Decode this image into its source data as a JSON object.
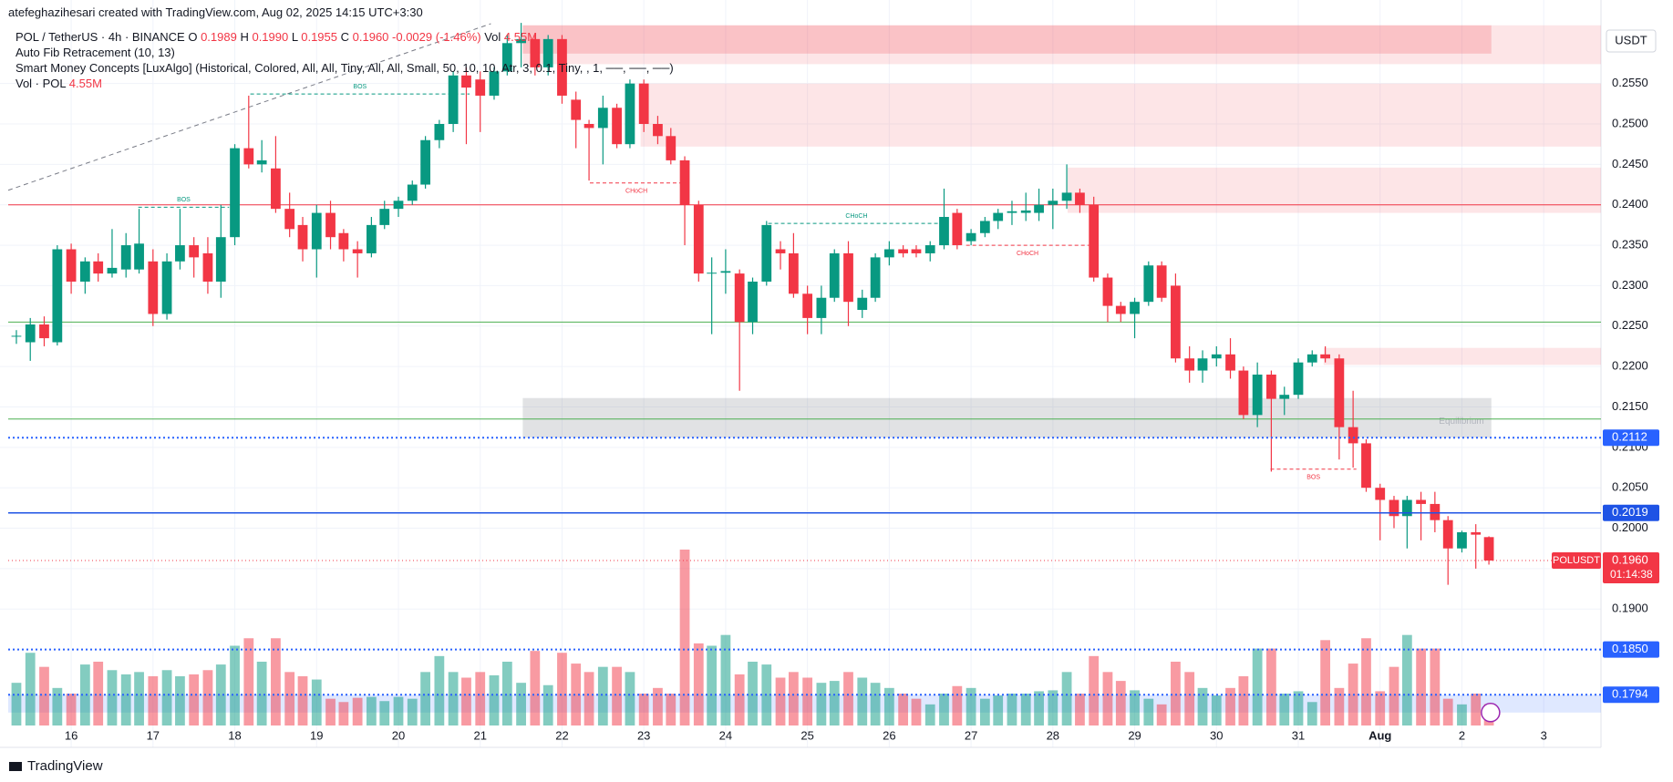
{
  "header": {
    "credit": "atefeghazihesari created with TradingView.com, Aug 02, 2025 14:15 UTC+3:30",
    "symbol": "POL / TetherUS · 4h · BINANCE",
    "ohlc": [
      {
        "label": "O",
        "value": "0.1989"
      },
      {
        "label": "H",
        "value": "0.1990"
      },
      {
        "label": "L",
        "value": "0.1955"
      },
      {
        "label": "C",
        "value": "0.1960"
      }
    ],
    "change": "-0.0029 (-1.46%)",
    "vol_label": "Vol",
    "vol_value": "4.55M",
    "indicators": [
      "Auto Fib Retracement (10, 13)",
      "Smart Money Concepts [LuxAlgo] (Historical, Colored, All, All, Tiny, All, All, Small, 50, 10, 10, Atr, 3, 0.1, Tiny, , 1, ──, ──, ──)"
    ],
    "volume_indicator": {
      "name": "Vol · POL",
      "value": "4.55M"
    },
    "currency": "USDT",
    "brand": "TradingView"
  },
  "chart_data": {
    "type": "candlestick",
    "up_color": "#089981",
    "down_color": "#f23645",
    "grid": true,
    "xlim": [
      15.23,
      34.7
    ],
    "xticks": [
      16,
      17,
      18,
      19,
      20,
      21,
      22,
      23,
      24,
      25,
      26,
      27,
      28,
      29,
      30,
      31,
      {
        "value": 32,
        "label": "Aug"
      },
      {
        "value": 33,
        "label": "2"
      },
      {
        "value": 34,
        "label": "3"
      }
    ],
    "ylim": [
      0.1756,
      0.2624
    ],
    "yticks": [
      {
        "value": 0.19,
        "label": "0.1900"
      },
      {
        "value": 0.195,
        "label": "0.1950"
      },
      {
        "value": 0.2,
        "label": "0.2000"
      },
      {
        "value": 0.205,
        "label": "0.2050"
      },
      {
        "value": 0.21,
        "label": "0.2100"
      },
      {
        "value": 0.215,
        "label": "0.2150"
      },
      {
        "value": 0.22,
        "label": "0.2200"
      },
      {
        "value": 0.225,
        "label": "0.2250"
      },
      {
        "value": 0.23,
        "label": "0.2300"
      },
      {
        "value": 0.235,
        "label": "0.2350"
      },
      {
        "value": 0.24,
        "label": "0.2400"
      },
      {
        "value": 0.245,
        "label": "0.2450"
      },
      {
        "value": 0.25,
        "label": "0.2500"
      },
      {
        "value": 0.255,
        "label": "0.2550"
      }
    ],
    "candles": [
      [
        15.33,
        0.2237,
        0.2245,
        0.2228,
        0.2238,
        9.1
      ],
      [
        15.5,
        0.223,
        0.226,
        0.2207,
        0.2252,
        15.5
      ],
      [
        15.67,
        0.2252,
        0.2262,
        0.2225,
        0.2235,
        12.5
      ],
      [
        15.83,
        0.223,
        0.235,
        0.2226,
        0.2345,
        8.0
      ],
      [
        16,
        0.2345,
        0.2352,
        0.229,
        0.2305,
        6.8
      ],
      [
        16.17,
        0.2305,
        0.2335,
        0.229,
        0.233,
        13.0
      ],
      [
        16.33,
        0.233,
        0.234,
        0.2305,
        0.2315,
        13.6
      ],
      [
        16.5,
        0.2315,
        0.237,
        0.231,
        0.2322,
        11.8
      ],
      [
        16.67,
        0.232,
        0.2365,
        0.231,
        0.235,
        10.9
      ],
      [
        16.83,
        0.232,
        0.2395,
        0.2315,
        0.2352,
        11.4
      ],
      [
        17,
        0.233,
        0.2345,
        0.225,
        0.2265,
        10.5
      ],
      [
        17.17,
        0.2265,
        0.234,
        0.2258,
        0.233,
        11.8
      ],
      [
        17.33,
        0.233,
        0.2395,
        0.232,
        0.235,
        10.5
      ],
      [
        17.5,
        0.235,
        0.236,
        0.231,
        0.2335,
        10.9
      ],
      [
        17.67,
        0.234,
        0.236,
        0.229,
        0.2305,
        11.8
      ],
      [
        17.83,
        0.2305,
        0.24,
        0.2285,
        0.236,
        13.0
      ],
      [
        18,
        0.236,
        0.2475,
        0.235,
        0.247,
        17.0
      ],
      [
        18.17,
        0.247,
        0.2535,
        0.2445,
        0.245,
        18.6
      ],
      [
        18.33,
        0.245,
        0.248,
        0.244,
        0.2455,
        13.6
      ],
      [
        18.5,
        0.2445,
        0.2485,
        0.239,
        0.2395,
        18.6
      ],
      [
        18.67,
        0.2395,
        0.2415,
        0.236,
        0.237,
        11.4
      ],
      [
        18.83,
        0.2375,
        0.2385,
        0.233,
        0.2345,
        10.5
      ],
      [
        19,
        0.2345,
        0.24,
        0.231,
        0.239,
        9.8
      ],
      [
        19.17,
        0.239,
        0.2405,
        0.2345,
        0.236,
        5.7
      ],
      [
        19.33,
        0.2365,
        0.237,
        0.233,
        0.2345,
        5.0
      ],
      [
        19.5,
        0.2345,
        0.2355,
        0.231,
        0.234,
        5.9
      ],
      [
        19.67,
        0.234,
        0.2385,
        0.2335,
        0.2375,
        6.1
      ],
      [
        19.83,
        0.2375,
        0.2405,
        0.237,
        0.2395,
        5.2
      ],
      [
        20,
        0.2395,
        0.241,
        0.2385,
        0.2405,
        6.1
      ],
      [
        20.17,
        0.2405,
        0.243,
        0.24,
        0.2425,
        5.7
      ],
      [
        20.33,
        0.2425,
        0.2485,
        0.242,
        0.248,
        11.4
      ],
      [
        20.5,
        0.248,
        0.2505,
        0.247,
        0.25,
        14.8
      ],
      [
        20.67,
        0.25,
        0.2565,
        0.249,
        0.256,
        11.4
      ],
      [
        20.83,
        0.256,
        0.257,
        0.2475,
        0.2545,
        10.2
      ],
      [
        21,
        0.2555,
        0.2565,
        0.249,
        0.2535,
        11.4
      ],
      [
        21.17,
        0.2535,
        0.257,
        0.253,
        0.2565,
        10.7
      ],
      [
        21.33,
        0.2565,
        0.261,
        0.256,
        0.26,
        13.6
      ],
      [
        21.5,
        0.26,
        0.2625,
        0.257,
        0.2605,
        9.1
      ],
      [
        21.67,
        0.2605,
        0.261,
        0.256,
        0.257,
        15.9
      ],
      [
        21.83,
        0.257,
        0.261,
        0.256,
        0.2605,
        8.6
      ],
      [
        22,
        0.2605,
        0.261,
        0.2525,
        0.2535,
        15.5
      ],
      [
        22.17,
        0.253,
        0.254,
        0.247,
        0.2505,
        13.2
      ],
      [
        22.33,
        0.25,
        0.2505,
        0.243,
        0.2495,
        11.4
      ],
      [
        22.5,
        0.2495,
        0.2535,
        0.245,
        0.252,
        12.5
      ],
      [
        22.67,
        0.252,
        0.2525,
        0.247,
        0.2475,
        12.5
      ],
      [
        22.83,
        0.2475,
        0.2555,
        0.247,
        0.255,
        11.4
      ],
      [
        23,
        0.255,
        0.2555,
        0.249,
        0.25,
        6.8
      ],
      [
        23.17,
        0.25,
        0.251,
        0.2475,
        0.2485,
        8.0
      ],
      [
        23.33,
        0.2485,
        0.2495,
        0.245,
        0.2455,
        6.8
      ],
      [
        23.5,
        0.2455,
        0.246,
        0.235,
        0.24,
        37.5
      ],
      [
        23.67,
        0.24,
        0.2405,
        0.2305,
        0.2315,
        17.5
      ],
      [
        23.83,
        0.2315,
        0.2335,
        0.224,
        0.2316,
        17.0
      ],
      [
        24,
        0.2316,
        0.2345,
        0.229,
        0.2318,
        19.3
      ],
      [
        24.17,
        0.2315,
        0.232,
        0.217,
        0.2255,
        10.9
      ],
      [
        24.33,
        0.2255,
        0.231,
        0.224,
        0.2305,
        13.6
      ],
      [
        24.5,
        0.2305,
        0.238,
        0.23,
        0.2375,
        13.0
      ],
      [
        24.67,
        0.2345,
        0.2355,
        0.232,
        0.234,
        10.2
      ],
      [
        24.83,
        0.234,
        0.2365,
        0.2285,
        0.229,
        11.4
      ],
      [
        25,
        0.229,
        0.23,
        0.224,
        0.226,
        10.2
      ],
      [
        25.17,
        0.226,
        0.23,
        0.224,
        0.2285,
        9.1
      ],
      [
        25.33,
        0.2285,
        0.2345,
        0.228,
        0.234,
        9.5
      ],
      [
        25.5,
        0.234,
        0.2355,
        0.225,
        0.228,
        11.4
      ],
      [
        25.67,
        0.227,
        0.2295,
        0.226,
        0.2285,
        10.2
      ],
      [
        25.83,
        0.2285,
        0.234,
        0.228,
        0.2335,
        9.1
      ],
      [
        26,
        0.2335,
        0.2355,
        0.2325,
        0.2345,
        8.0
      ],
      [
        26.17,
        0.2345,
        0.235,
        0.2335,
        0.234,
        6.8
      ],
      [
        26.33,
        0.2345,
        0.235,
        0.2335,
        0.234,
        5.7
      ],
      [
        26.5,
        0.234,
        0.2355,
        0.233,
        0.235,
        4.5
      ],
      [
        26.67,
        0.235,
        0.242,
        0.2345,
        0.2385,
        6.8
      ],
      [
        26.83,
        0.239,
        0.2395,
        0.2345,
        0.235,
        8.4
      ],
      [
        27,
        0.2355,
        0.237,
        0.235,
        0.2365,
        8.0
      ],
      [
        27.17,
        0.2365,
        0.2385,
        0.236,
        0.238,
        5.7
      ],
      [
        27.33,
        0.238,
        0.2395,
        0.237,
        0.239,
        6.4
      ],
      [
        27.5,
        0.239,
        0.2405,
        0.2375,
        0.2392,
        6.8
      ],
      [
        27.67,
        0.239,
        0.2415,
        0.238,
        0.2393,
        6.8
      ],
      [
        27.83,
        0.239,
        0.242,
        0.238,
        0.24,
        7.3
      ],
      [
        28,
        0.24,
        0.242,
        0.237,
        0.2405,
        7.5
      ],
      [
        28.17,
        0.2405,
        0.245,
        0.2395,
        0.2415,
        11.4
      ],
      [
        28.33,
        0.2415,
        0.242,
        0.239,
        0.24,
        6.8
      ],
      [
        28.5,
        0.24,
        0.241,
        0.2305,
        0.231,
        14.8
      ],
      [
        28.67,
        0.231,
        0.2315,
        0.2255,
        0.2275,
        11.4
      ],
      [
        28.83,
        0.2275,
        0.228,
        0.2255,
        0.2265,
        9.5
      ],
      [
        29,
        0.2265,
        0.2285,
        0.2235,
        0.228,
        7.5
      ],
      [
        29.17,
        0.228,
        0.233,
        0.2275,
        0.2325,
        5.7
      ],
      [
        29.33,
        0.2325,
        0.233,
        0.228,
        0.2285,
        4.5
      ],
      [
        29.5,
        0.23,
        0.2315,
        0.2205,
        0.221,
        13.6
      ],
      [
        29.67,
        0.221,
        0.2225,
        0.218,
        0.2195,
        11.4
      ],
      [
        29.83,
        0.2195,
        0.222,
        0.218,
        0.221,
        8.0
      ],
      [
        30,
        0.221,
        0.2225,
        0.22,
        0.2215,
        6.4
      ],
      [
        30.17,
        0.2215,
        0.2235,
        0.2185,
        0.2195,
        8.0
      ],
      [
        30.33,
        0.2195,
        0.22,
        0.2135,
        0.214,
        10.5
      ],
      [
        30.5,
        0.214,
        0.2205,
        0.2125,
        0.219,
        16.4
      ],
      [
        30.67,
        0.219,
        0.2195,
        0.207,
        0.216,
        16.4
      ],
      [
        30.83,
        0.216,
        0.2175,
        0.214,
        0.2165,
        6.8
      ],
      [
        31,
        0.2165,
        0.221,
        0.216,
        0.2205,
        7.3
      ],
      [
        31.17,
        0.2205,
        0.222,
        0.22,
        0.2215,
        5.0
      ],
      [
        31.33,
        0.2215,
        0.2225,
        0.2205,
        0.221,
        18.2
      ],
      [
        31.5,
        0.221,
        0.2215,
        0.2085,
        0.2125,
        8.0
      ],
      [
        31.67,
        0.2125,
        0.217,
        0.2075,
        0.2105,
        13.2
      ],
      [
        31.83,
        0.2105,
        0.211,
        0.2045,
        0.205,
        18.6
      ],
      [
        32,
        0.205,
        0.2055,
        0.1985,
        0.2035,
        7.3
      ],
      [
        32.17,
        0.2035,
        0.204,
        0.2,
        0.2015,
        12.5
      ],
      [
        32.33,
        0.2015,
        0.204,
        0.1975,
        0.2035,
        19.3
      ],
      [
        32.5,
        0.2035,
        0.2045,
        0.1985,
        0.203,
        16.4
      ],
      [
        32.67,
        0.203,
        0.2045,
        0.1995,
        0.201,
        16.4
      ],
      [
        32.83,
        0.201,
        0.2015,
        0.193,
        0.1975,
        5.7
      ],
      [
        33,
        0.1975,
        0.1997,
        0.197,
        0.1995,
        4.5
      ],
      [
        33.17,
        0.1995,
        0.2005,
        0.195,
        0.1992,
        6.8
      ],
      [
        33.33,
        0.1989,
        0.199,
        0.1955,
        0.196,
        4.55
      ]
    ],
    "zones": [
      {
        "top": 0.2622,
        "bottom": 0.2574,
        "x": [
          21.52,
          34.7
        ],
        "color": "rgba(242,54,69,0.13)"
      },
      {
        "top": 0.2622,
        "bottom": 0.2587,
        "x": [
          21.52,
          33.36
        ],
        "color": "rgba(242,54,69,0.2)"
      },
      {
        "top": 0.255,
        "bottom": 0.2472,
        "x": [
          22.96,
          34.7
        ],
        "color": "rgba(242,54,69,0.13)"
      },
      {
        "top": 0.2446,
        "bottom": 0.239,
        "x": [
          28.18,
          34.7
        ],
        "color": "rgba(242,54,69,0.13)"
      },
      {
        "top": 0.2223,
        "bottom": 0.2202,
        "x": [
          31.31,
          34.7
        ],
        "color": "rgba(242,54,69,0.13)"
      },
      {
        "top": 0.2161,
        "bottom": 0.2112,
        "x": [
          21.52,
          33.36
        ],
        "color": "rgba(120,123,134,0.22)",
        "label": "Equilibrium"
      },
      {
        "top": 0.1794,
        "bottom": 0.1772,
        "x": [
          15.23,
          34.7
        ],
        "color": "rgba(41,98,255,0.15)"
      }
    ],
    "trend_line": {
      "x": [
        15.23,
        21.13
      ],
      "y": [
        0.2418,
        0.2624
      ]
    },
    "fib_lines": [
      {
        "y": 0.24,
        "color": "#f23645"
      },
      {
        "y": 0.2255,
        "color": "#4caf50"
      },
      {
        "y": 0.2135,
        "color": "#4caf50"
      }
    ],
    "structures": [
      {
        "label": "BOS",
        "y": 0.2397,
        "x": [
          16.82,
          17.93
        ],
        "color": "#089981"
      },
      {
        "label": "BOS",
        "y": 0.2537,
        "x": [
          18.19,
          20.87
        ],
        "color": "#089981"
      },
      {
        "label": "CHoCH",
        "y": 0.2427,
        "x": [
          22.34,
          23.48
        ],
        "color": "#f23645"
      },
      {
        "label": "CHoCH",
        "y": 0.2377,
        "x": [
          24.52,
          26.68
        ],
        "color": "#089981"
      },
      {
        "label": "CHoCH",
        "y": 0.235,
        "x": [
          26.94,
          28.44
        ],
        "color": "#f23645"
      },
      {
        "label": "BOS",
        "y": 0.2073,
        "x": [
          30.66,
          31.71
        ],
        "color": "#f23645"
      }
    ],
    "price_lines": [
      {
        "value": 0.2112,
        "color": "#2962ff",
        "style": "dotted"
      },
      {
        "value": 0.2019,
        "color": "#1e53e5",
        "style": "solid"
      },
      {
        "value": {
          "value": 0.185,
          "label": "0.1850"
        },
        "color": "#2962ff",
        "style": "dotted"
      },
      {
        "value": 0.1794,
        "color": "#2962ff",
        "style": "dotted"
      }
    ],
    "last_price": {
      "symbol": "POLUSDT",
      "value": {
        "value": 0.196,
        "label": "0.1960"
      },
      "countdown": "01:14:38",
      "color": "#f23645"
    }
  }
}
